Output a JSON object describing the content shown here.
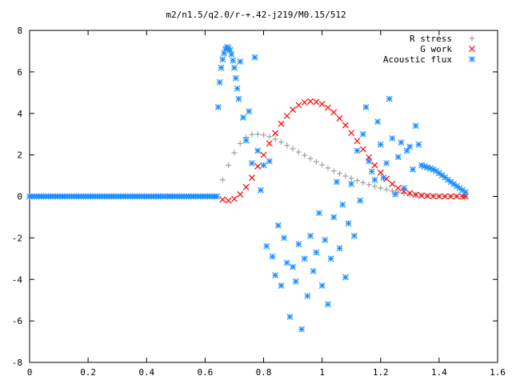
{
  "chart_data": {
    "type": "scatter",
    "title": "m2/n1.5/q2.0/r-+.42-j219/M0.15/512",
    "xlabel": "",
    "ylabel": "",
    "xlim": [
      0,
      1.6
    ],
    "ylim": [
      -8,
      8
    ],
    "xticks": [
      "0",
      "0.2",
      "0.4",
      "0.6",
      "0.8",
      "1",
      "1.2",
      "1.4",
      "1.6"
    ],
    "yticks": [
      "8",
      "6",
      "4",
      "2",
      "0",
      "-2",
      "-4",
      "-6",
      "-8"
    ],
    "grid": false,
    "legend_position": "top-right",
    "series": [
      {
        "name": "R stress",
        "marker": "plus",
        "color": "#a0a0a0",
        "x": [
          0.64,
          0.66,
          0.68,
          0.7,
          0.72,
          0.74,
          0.76,
          0.78,
          0.8,
          0.82,
          0.84,
          0.86,
          0.88,
          0.9,
          0.92,
          0.94,
          0.96,
          0.98,
          1.0,
          1.02,
          1.04,
          1.06,
          1.08,
          1.1,
          1.12,
          1.14,
          1.16,
          1.18,
          1.2,
          1.22,
          1.24,
          1.26,
          1.28,
          1.3,
          1.32,
          1.34,
          1.36,
          1.38,
          1.4,
          1.42,
          1.44,
          1.46,
          1.48,
          1.49
        ],
        "y": [
          0.0,
          0.8,
          1.5,
          2.1,
          2.55,
          2.85,
          2.98,
          3.0,
          2.96,
          2.88,
          2.76,
          2.62,
          2.46,
          2.3,
          2.14,
          1.98,
          1.82,
          1.67,
          1.52,
          1.37,
          1.23,
          1.1,
          0.98,
          0.87,
          0.76,
          0.66,
          0.57,
          0.48,
          0.4,
          0.33,
          0.26,
          0.2,
          0.15,
          0.11,
          0.08,
          0.05,
          0.03,
          0.02,
          0.01,
          0.0,
          0.0,
          0.0,
          0.0,
          0.0
        ]
      },
      {
        "name": "G work",
        "marker": "cross",
        "color": "#ff0000",
        "x": [
          0.64,
          0.66,
          0.68,
          0.7,
          0.72,
          0.74,
          0.76,
          0.78,
          0.8,
          0.82,
          0.84,
          0.86,
          0.88,
          0.9,
          0.92,
          0.94,
          0.96,
          0.98,
          1.0,
          1.02,
          1.04,
          1.06,
          1.08,
          1.1,
          1.12,
          1.14,
          1.16,
          1.18,
          1.2,
          1.22,
          1.24,
          1.26,
          1.28,
          1.3,
          1.32,
          1.34,
          1.36,
          1.38,
          1.4,
          1.42,
          1.44,
          1.46,
          1.48,
          1.49
        ],
        "y": [
          0.0,
          -0.15,
          -0.2,
          -0.12,
          0.1,
          0.45,
          0.9,
          1.45,
          2.0,
          2.55,
          3.05,
          3.5,
          3.88,
          4.18,
          4.4,
          4.53,
          4.58,
          4.55,
          4.45,
          4.28,
          4.05,
          3.76,
          3.43,
          3.06,
          2.67,
          2.27,
          1.88,
          1.5,
          1.15,
          0.85,
          0.6,
          0.4,
          0.25,
          0.15,
          0.08,
          0.04,
          0.02,
          0.01,
          0.0,
          0.0,
          0.0,
          0.0,
          0.0,
          0.0
        ]
      },
      {
        "name": "Acoustic flux",
        "marker": "star",
        "color": "#1e90ff",
        "x": [
          0.0,
          0.04,
          0.08,
          0.12,
          0.16,
          0.2,
          0.24,
          0.28,
          0.32,
          0.36,
          0.4,
          0.44,
          0.48,
          0.52,
          0.56,
          0.6,
          0.64,
          0.645,
          0.65,
          0.655,
          0.66,
          0.665,
          0.67,
          0.675,
          0.68,
          0.685,
          0.69,
          0.695,
          0.7,
          0.705,
          0.71,
          0.715,
          0.72,
          0.73,
          0.74,
          0.75,
          0.76,
          0.77,
          0.78,
          0.79,
          0.8,
          0.81,
          0.82,
          0.83,
          0.84,
          0.85,
          0.86,
          0.87,
          0.88,
          0.89,
          0.9,
          0.91,
          0.92,
          0.93,
          0.94,
          0.95,
          0.96,
          0.97,
          0.98,
          0.99,
          1.0,
          1.01,
          1.02,
          1.03,
          1.04,
          1.05,
          1.06,
          1.07,
          1.08,
          1.09,
          1.1,
          1.11,
          1.12,
          1.13,
          1.14,
          1.15,
          1.16,
          1.17,
          1.18,
          1.19,
          1.2,
          1.21,
          1.22,
          1.23,
          1.24,
          1.25,
          1.26,
          1.27,
          1.28,
          1.29,
          1.3,
          1.31,
          1.32,
          1.33,
          1.34,
          1.35,
          1.36,
          1.37,
          1.38,
          1.39,
          1.4,
          1.41,
          1.42,
          1.43,
          1.44,
          1.45,
          1.46,
          1.47,
          1.48,
          1.49
        ],
        "y": [
          0.0,
          0.0,
          0.0,
          0.0,
          0.0,
          0.0,
          0.0,
          0.0,
          0.0,
          0.0,
          0.0,
          0.0,
          0.0,
          0.0,
          0.0,
          0.0,
          0.0,
          4.3,
          5.5,
          6.2,
          6.6,
          6.9,
          7.1,
          7.2,
          7.15,
          7.05,
          6.85,
          6.55,
          6.2,
          5.7,
          5.2,
          4.7,
          6.5,
          3.8,
          2.7,
          4.1,
          1.6,
          6.7,
          2.2,
          0.3,
          1.5,
          -2.4,
          1.7,
          -2.9,
          -3.8,
          -1.4,
          -4.3,
          -2.0,
          -3.2,
          -5.8,
          -3.4,
          -4.1,
          -2.3,
          -6.4,
          -3.0,
          -4.8,
          -1.9,
          -3.6,
          -2.7,
          -0.8,
          -4.3,
          -2.1,
          -5.2,
          -3.0,
          -1.0,
          0.7,
          -2.5,
          -0.4,
          -3.9,
          -1.3,
          0.6,
          -1.9,
          2.2,
          -0.2,
          3.0,
          4.3,
          1.7,
          1.2,
          0.8,
          3.6,
          2.5,
          0.9,
          1.6,
          4.7,
          2.8,
          0.1,
          1.9,
          2.6,
          0.4,
          2.2,
          2.4,
          1.3,
          3.4,
          2.5,
          1.5,
          1.45,
          1.4,
          1.35,
          1.3,
          1.22,
          1.12,
          1.02,
          0.92,
          0.8,
          0.7,
          0.6,
          0.5,
          0.4,
          0.3,
          0.2
        ]
      }
    ]
  }
}
